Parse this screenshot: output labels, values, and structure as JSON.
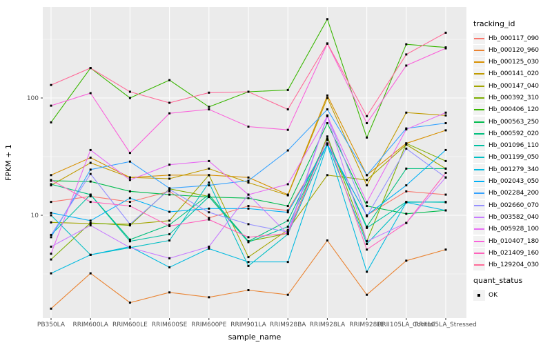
{
  "chart_data": {
    "type": "line",
    "title": "",
    "xlabel": "sample_name",
    "ylabel": "FPKM + 1",
    "y_scale": "log10",
    "y_ticks": [
      10,
      100
    ],
    "y_minor": [
      3.162,
      31.62,
      316.2
    ],
    "ylim_approx": [
      1.35,
      600
    ],
    "grid": "on",
    "legend_position": "right",
    "legend_title": "tracking_id",
    "point_shape": "filled-square",
    "categories": [
      "PB350LA",
      "RRIM600LA",
      "RRIM600LE",
      "RRIM600SE",
      "RRIM600PE",
      "RRIM901LA",
      "RRIM928BA",
      "RRIM928LA",
      "RRIM928LE",
      "RRII105LA_Control",
      "RRII105LA_Stressed"
    ],
    "series": [
      {
        "name": "Hb_000117_090",
        "color": "#F8766D",
        "values": [
          13,
          14.5,
          13,
          16,
          9.5,
          12,
          11,
          40,
          10,
          16,
          15
        ]
      },
      {
        "name": "Hb_000120_960",
        "color": "#EA8331",
        "values": [
          1.6,
          3.2,
          1.8,
          2.2,
          2.0,
          2.3,
          2.1,
          6.1,
          2.1,
          4.1,
          5.1
        ]
      },
      {
        "name": "Hb_000125_030",
        "color": "#D89000",
        "values": [
          22,
          31,
          21,
          22,
          22,
          21,
          15,
          105,
          22,
          41,
          53
        ]
      },
      {
        "name": "Hb_000141_020",
        "color": "#C09B00",
        "values": [
          18,
          28,
          21,
          20.5,
          25,
          19,
          14.8,
          100,
          18,
          75,
          71
        ]
      },
      {
        "name": "Hb_000147_040",
        "color": "#A3A500",
        "values": [
          8.7,
          8.5,
          8.4,
          9,
          22,
          4.4,
          7.5,
          22,
          20,
          40,
          25
        ]
      },
      {
        "name": "Hb_000392_310",
        "color": "#7CAE00",
        "values": [
          4.2,
          8.6,
          8.2,
          16.8,
          14.5,
          6.0,
          7.0,
          47,
          6.0,
          41,
          29
        ]
      },
      {
        "name": "Hb_000406_120",
        "color": "#39B600",
        "values": [
          62,
          180,
          100,
          142,
          84,
          113,
          117,
          470,
          46,
          287,
          270
        ]
      },
      {
        "name": "Hb_000563_250",
        "color": "#00BB4E",
        "values": [
          19.7,
          19.4,
          16,
          15,
          14.3,
          14,
          12,
          61,
          12,
          10.3,
          11
        ]
      },
      {
        "name": "Hb_000592_020",
        "color": "#00BF7D",
        "values": [
          18.4,
          15,
          6.2,
          8.3,
          15,
          6.0,
          9,
          44,
          8,
          25,
          25
        ]
      },
      {
        "name": "Hb_001096_110",
        "color": "#00C1A3",
        "values": [
          6.8,
          15,
          6.0,
          6.9,
          14.4,
          5.9,
          8,
          44,
          7.8,
          13,
          12.9
        ]
      },
      {
        "name": "Hb_001199_050",
        "color": "#00BFC4",
        "values": [
          10,
          4.6,
          5.3,
          6.1,
          19,
          3.7,
          6.9,
          41,
          5.7,
          12.9,
          13
        ]
      },
      {
        "name": "Hb_001279_340",
        "color": "#00BAE0",
        "values": [
          3.2,
          4.6,
          5.4,
          3.6,
          5.2,
          4.0,
          4.0,
          40,
          3.3,
          12.9,
          11
        ]
      },
      {
        "name": "Hb_002043_050",
        "color": "#00B0F6",
        "values": [
          10.5,
          9,
          14,
          10.7,
          11.4,
          11.4,
          10.6,
          40,
          10,
          18,
          36
        ]
      },
      {
        "name": "Hb_002284_200",
        "color": "#35A2FF",
        "values": [
          6.5,
          24.5,
          28.7,
          17,
          18,
          19.7,
          35.7,
          80,
          22,
          55,
          61
        ]
      },
      {
        "name": "Hb_002660_070",
        "color": "#9590FF",
        "values": [
          6.8,
          22.5,
          8.4,
          16.6,
          10.6,
          8.4,
          7.2,
          71,
          9.8,
          37,
          21
        ]
      },
      {
        "name": "Hb_003582_040",
        "color": "#C77CFF",
        "values": [
          5.4,
          8.2,
          5.3,
          4.3,
          5.4,
          15,
          6.9,
          70,
          6.0,
          8.6,
          21
        ]
      },
      {
        "name": "Hb_005928_100",
        "color": "#E76BF3",
        "values": [
          4.7,
          36,
          20,
          27,
          29,
          15,
          18.4,
          70,
          12.9,
          54,
          75
        ]
      },
      {
        "name": "Hb_010407_180",
        "color": "#FA62DB",
        "values": [
          86,
          110,
          34,
          74,
          80,
          57,
          53.5,
          290,
          61,
          189,
          265
        ]
      },
      {
        "name": "Hb_021409_160",
        "color": "#FF62BC",
        "values": [
          20,
          13,
          12,
          8.1,
          9.2,
          6.5,
          7,
          45,
          5.1,
          8.6,
          23
        ]
      },
      {
        "name": "Hb_129204_030",
        "color": "#FF6A98",
        "values": [
          129,
          180,
          113,
          91,
          111,
          113,
          80,
          292,
          70,
          235,
          360
        ]
      }
    ],
    "quant_legend": {
      "title": "quant_status",
      "items": [
        "OK"
      ]
    }
  },
  "panel": {
    "bg": "#EBEBEB",
    "grid_color": "#FFFFFF",
    "point_color": "#000000"
  }
}
